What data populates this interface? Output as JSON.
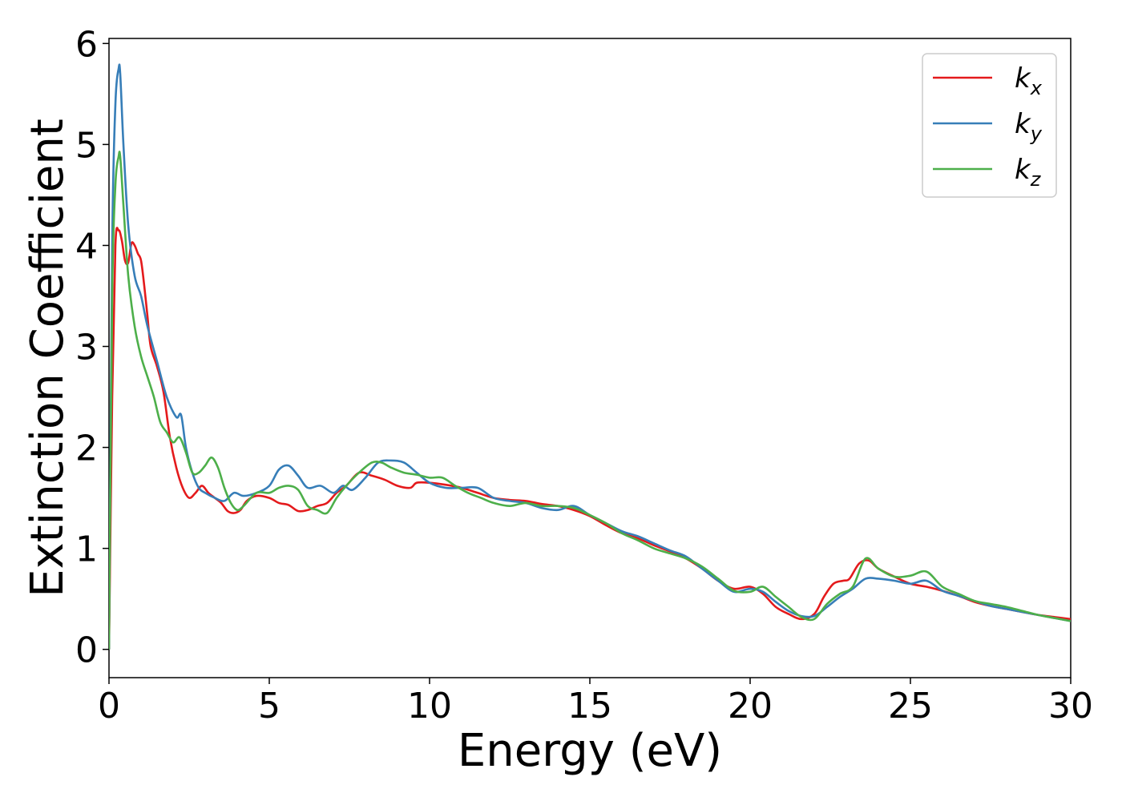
{
  "chart_data": {
    "type": "line",
    "xlabel": "Energy (eV)",
    "ylabel": "Extinction Coefficient",
    "xlim": [
      0,
      30
    ],
    "ylim": [
      -0.28,
      6.05
    ],
    "xticks": [
      "0",
      "5",
      "10",
      "15",
      "20",
      "25",
      "30"
    ],
    "yticks": [
      "0",
      "1",
      "2",
      "3",
      "4",
      "5",
      "6"
    ],
    "grid": false,
    "legend_position": "top-right",
    "series": [
      {
        "name": "k",
        "subscript": "x",
        "color": "#e41a1c",
        "x": [
          0,
          0.1,
          0.2,
          0.3,
          0.4,
          0.5,
          0.6,
          0.7,
          0.8,
          0.9,
          1.0,
          1.1,
          1.2,
          1.3,
          1.5,
          1.7,
          1.9,
          2.1,
          2.3,
          2.5,
          2.7,
          2.9,
          3.1,
          3.3,
          3.5,
          3.7,
          3.9,
          4.1,
          4.3,
          4.6,
          5.0,
          5.3,
          5.6,
          5.9,
          6.2,
          6.5,
          6.8,
          7.1,
          7.4,
          7.8,
          8.2,
          8.6,
          9.0,
          9.4,
          9.6,
          10.0,
          10.5,
          11.0,
          11.5,
          12.0,
          12.5,
          13.0,
          13.5,
          14.0,
          14.5,
          15.0,
          15.5,
          16.0,
          16.5,
          17.0,
          17.5,
          18.0,
          18.5,
          19.0,
          19.5,
          20.0,
          20.4,
          20.8,
          21.2,
          21.6,
          22.0,
          22.3,
          22.6,
          22.9,
          23.1,
          23.4,
          23.7,
          24.0,
          24.5,
          25.0,
          25.5,
          26.0,
          26.5,
          27.0,
          27.5,
          28.0,
          28.5,
          29.0,
          29.5,
          30.0
        ],
        "y": [
          0,
          2.5,
          4.0,
          4.15,
          4.05,
          3.85,
          3.83,
          4.02,
          4.0,
          3.92,
          3.85,
          3.6,
          3.3,
          3.0,
          2.8,
          2.55,
          2.1,
          1.8,
          1.6,
          1.5,
          1.55,
          1.62,
          1.55,
          1.5,
          1.45,
          1.37,
          1.35,
          1.38,
          1.47,
          1.52,
          1.5,
          1.45,
          1.43,
          1.37,
          1.38,
          1.42,
          1.45,
          1.55,
          1.62,
          1.75,
          1.72,
          1.68,
          1.62,
          1.6,
          1.65,
          1.65,
          1.63,
          1.6,
          1.55,
          1.5,
          1.48,
          1.47,
          1.44,
          1.42,
          1.38,
          1.32,
          1.23,
          1.15,
          1.1,
          1.03,
          0.97,
          0.9,
          0.8,
          0.68,
          0.6,
          0.62,
          0.55,
          0.42,
          0.35,
          0.3,
          0.35,
          0.52,
          0.65,
          0.68,
          0.7,
          0.85,
          0.88,
          0.8,
          0.72,
          0.65,
          0.62,
          0.58,
          0.53,
          0.47,
          0.43,
          0.4,
          0.37,
          0.34,
          0.32,
          0.3
        ]
      },
      {
        "name": "k",
        "subscript": "y",
        "color": "#377eb8",
        "x": [
          0,
          0.1,
          0.2,
          0.3,
          0.35,
          0.45,
          0.6,
          0.8,
          1.0,
          1.2,
          1.5,
          1.8,
          2.1,
          2.25,
          2.4,
          2.6,
          2.8,
          3.0,
          3.3,
          3.6,
          3.9,
          4.2,
          4.6,
          5.0,
          5.3,
          5.6,
          5.9,
          6.2,
          6.6,
          7.0,
          7.3,
          7.6,
          8.0,
          8.4,
          8.8,
          9.2,
          9.6,
          10.0,
          10.5,
          11.0,
          11.5,
          12.0,
          12.5,
          13.0,
          13.5,
          14.0,
          14.5,
          15.0,
          15.5,
          16.0,
          16.5,
          17.0,
          17.5,
          18.0,
          18.5,
          19.0,
          19.5,
          20.0,
          20.4,
          20.8,
          21.2,
          21.6,
          22.0,
          22.4,
          22.8,
          23.2,
          23.6,
          24.0,
          24.5,
          25.0,
          25.5,
          26.0,
          26.5,
          27.0,
          27.5,
          28.0,
          28.5,
          29.0,
          29.5,
          30.0
        ],
        "y": [
          0,
          4.0,
          5.4,
          5.75,
          5.7,
          5.0,
          4.2,
          3.7,
          3.5,
          3.2,
          2.85,
          2.5,
          2.3,
          2.32,
          2.0,
          1.75,
          1.6,
          1.55,
          1.5,
          1.47,
          1.55,
          1.52,
          1.55,
          1.62,
          1.78,
          1.82,
          1.72,
          1.6,
          1.62,
          1.55,
          1.62,
          1.58,
          1.7,
          1.85,
          1.87,
          1.85,
          1.75,
          1.65,
          1.6,
          1.6,
          1.6,
          1.5,
          1.47,
          1.45,
          1.4,
          1.38,
          1.42,
          1.33,
          1.25,
          1.17,
          1.12,
          1.05,
          0.98,
          0.92,
          0.8,
          0.68,
          0.57,
          0.6,
          0.57,
          0.47,
          0.38,
          0.33,
          0.33,
          0.42,
          0.52,
          0.6,
          0.7,
          0.7,
          0.68,
          0.65,
          0.68,
          0.58,
          0.53,
          0.48,
          0.43,
          0.4,
          0.37,
          0.34,
          0.31,
          0.28
        ]
      },
      {
        "name": "k",
        "subscript": "z",
        "color": "#4daf4a",
        "x": [
          0,
          0.1,
          0.2,
          0.3,
          0.35,
          0.45,
          0.6,
          0.8,
          1.0,
          1.2,
          1.4,
          1.6,
          1.8,
          2.0,
          2.2,
          2.4,
          2.6,
          2.8,
          3.0,
          3.2,
          3.4,
          3.6,
          3.8,
          4.0,
          4.2,
          4.6,
          5.0,
          5.3,
          5.6,
          5.9,
          6.2,
          6.5,
          6.8,
          7.1,
          7.4,
          7.8,
          8.2,
          8.5,
          8.8,
          9.2,
          9.6,
          10.0,
          10.4,
          10.8,
          11.2,
          11.6,
          12.0,
          12.5,
          13.0,
          13.5,
          14.0,
          14.5,
          15.0,
          15.5,
          16.0,
          16.5,
          17.0,
          17.5,
          18.0,
          18.5,
          19.0,
          19.5,
          20.0,
          20.4,
          20.8,
          21.2,
          21.6,
          22.0,
          22.4,
          22.8,
          23.2,
          23.6,
          24.0,
          24.5,
          25.0,
          25.5,
          26.0,
          26.5,
          27.0,
          27.5,
          28.0,
          28.5,
          29.0,
          29.5,
          30.0
        ],
        "y": [
          0,
          3.5,
          4.6,
          4.88,
          4.88,
          4.4,
          3.7,
          3.2,
          2.9,
          2.7,
          2.5,
          2.25,
          2.15,
          2.05,
          2.1,
          1.95,
          1.75,
          1.75,
          1.82,
          1.9,
          1.8,
          1.6,
          1.45,
          1.38,
          1.42,
          1.55,
          1.55,
          1.6,
          1.62,
          1.58,
          1.42,
          1.38,
          1.35,
          1.5,
          1.62,
          1.75,
          1.85,
          1.85,
          1.8,
          1.75,
          1.73,
          1.7,
          1.7,
          1.62,
          1.55,
          1.5,
          1.45,
          1.42,
          1.45,
          1.42,
          1.42,
          1.4,
          1.33,
          1.25,
          1.15,
          1.08,
          1.0,
          0.95,
          0.9,
          0.82,
          0.7,
          0.58,
          0.57,
          0.62,
          0.52,
          0.42,
          0.32,
          0.3,
          0.45,
          0.55,
          0.62,
          0.9,
          0.8,
          0.72,
          0.73,
          0.77,
          0.62,
          0.55,
          0.48,
          0.45,
          0.42,
          0.38,
          0.34,
          0.31,
          0.28
        ]
      }
    ]
  }
}
